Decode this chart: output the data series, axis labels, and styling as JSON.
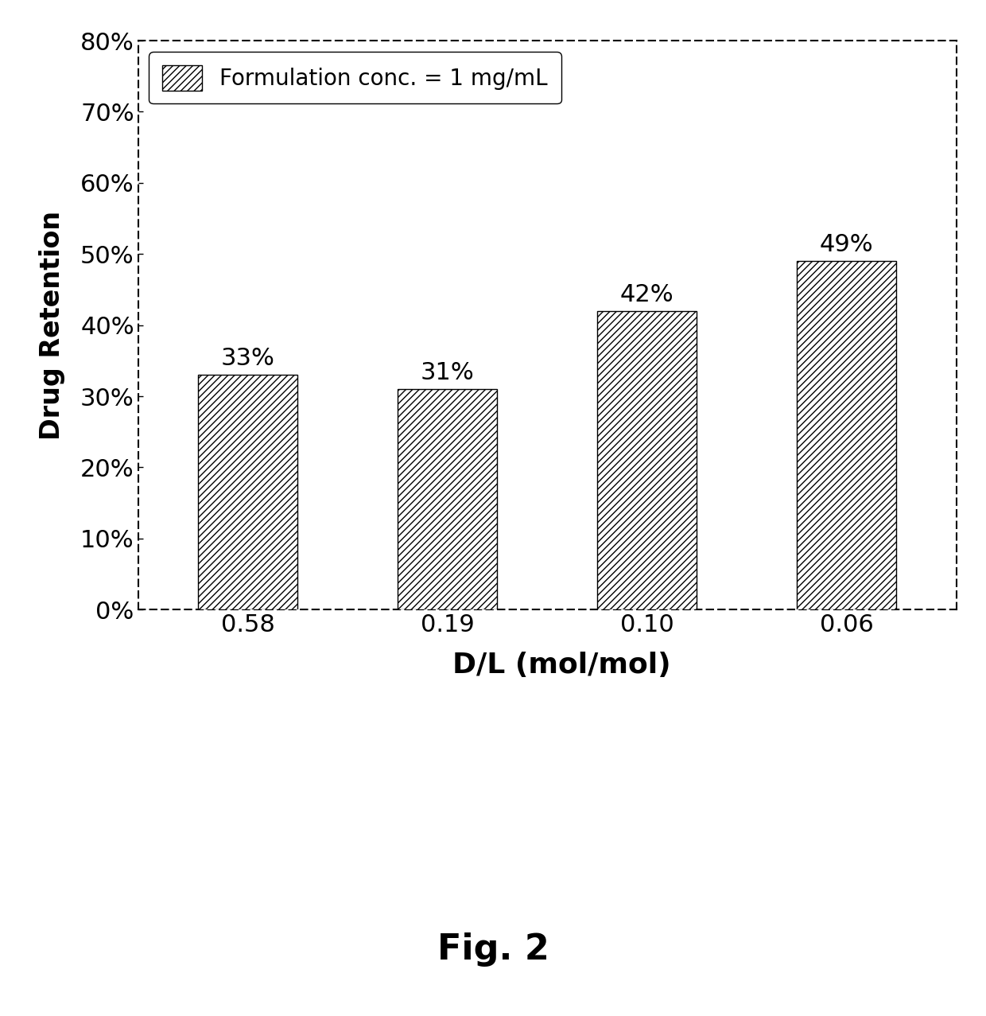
{
  "categories": [
    "0.58",
    "0.19",
    "0.10",
    "0.06"
  ],
  "values": [
    0.33,
    0.31,
    0.42,
    0.49
  ],
  "bar_labels": [
    "33%",
    "31%",
    "42%",
    "49%"
  ],
  "hatch_pattern": "////",
  "ylabel": "Drug Retention",
  "xlabel": "D/L (mol/mol)",
  "ylim": [
    0,
    0.8
  ],
  "yticks": [
    0.0,
    0.1,
    0.2,
    0.3,
    0.4,
    0.5,
    0.6,
    0.7,
    0.8
  ],
  "ytick_labels": [
    "0%",
    "10%",
    "20%",
    "30%",
    "40%",
    "50%",
    "60%",
    "70%",
    "80%"
  ],
  "legend_label": "Formulation conc. = 1 mg/mL",
  "fig_label": "Fig. 2",
  "label_fontsize": 24,
  "tick_fontsize": 22,
  "bar_label_fontsize": 22,
  "legend_fontsize": 20,
  "fig_label_fontsize": 32,
  "xlabel_fontsize": 26,
  "background_color": "#ffffff"
}
